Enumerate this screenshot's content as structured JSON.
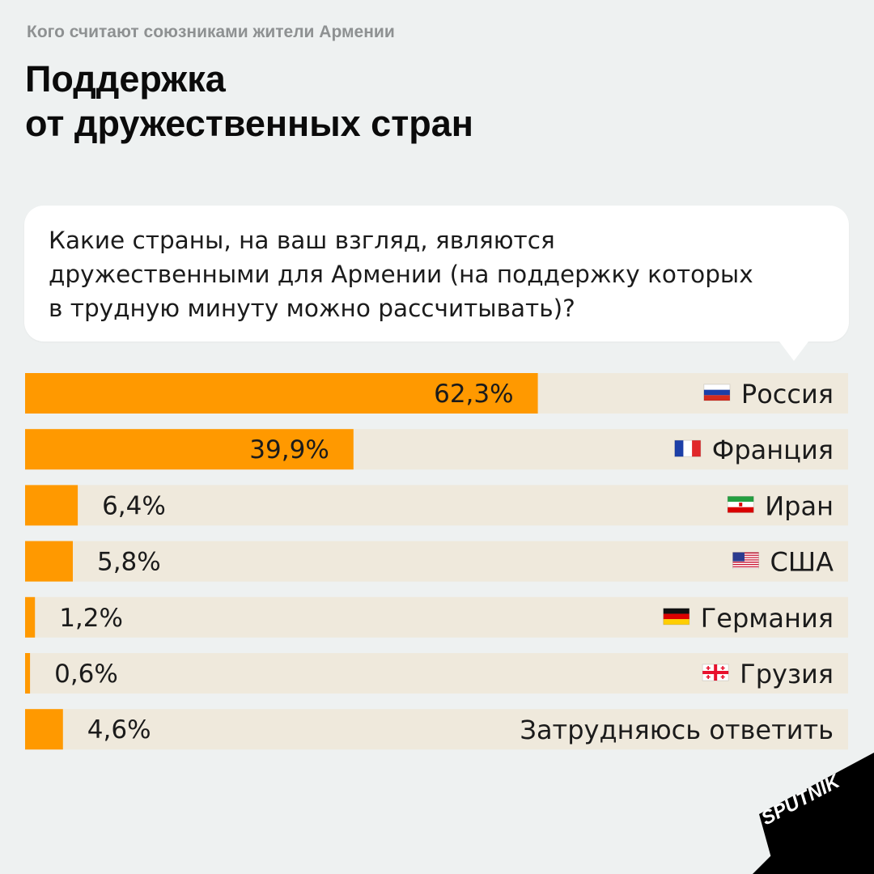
{
  "header": {
    "kicker": "Кого считают союзниками жители Армении",
    "title_lines": [
      "Поддержка",
      "от дружественных стран"
    ]
  },
  "question": {
    "lines": [
      "Какие страны, на ваш взгляд, являются",
      "дружественными для Армении (на поддержку которых",
      "в трудную минуту можно рассчитывать)?"
    ]
  },
  "colors": {
    "bar": "#ff9900",
    "track": "#efe9dc",
    "background": "#eef1f1"
  },
  "chart_data": {
    "type": "bar",
    "orientation": "horizontal",
    "xlim": [
      0,
      100
    ],
    "categories": [
      "Россия",
      "Франция",
      "Иран",
      "США",
      "Германия",
      "Грузия",
      "Затрудняюсь ответить"
    ],
    "values": [
      62.3,
      39.9,
      6.4,
      5.8,
      1.2,
      0.6,
      4.6
    ],
    "value_labels": [
      "62,3%",
      "39,9%",
      "6,4%",
      "5,8%",
      "1,2%",
      "0,6%",
      "4,6%"
    ],
    "flags": [
      "russia-flag-icon",
      "france-flag-icon",
      "iran-flag-icon",
      "usa-flag-icon",
      "germany-flag-icon",
      "georgia-flag-icon",
      ""
    ]
  },
  "brand": {
    "logo_text": "SPUTNIK"
  }
}
